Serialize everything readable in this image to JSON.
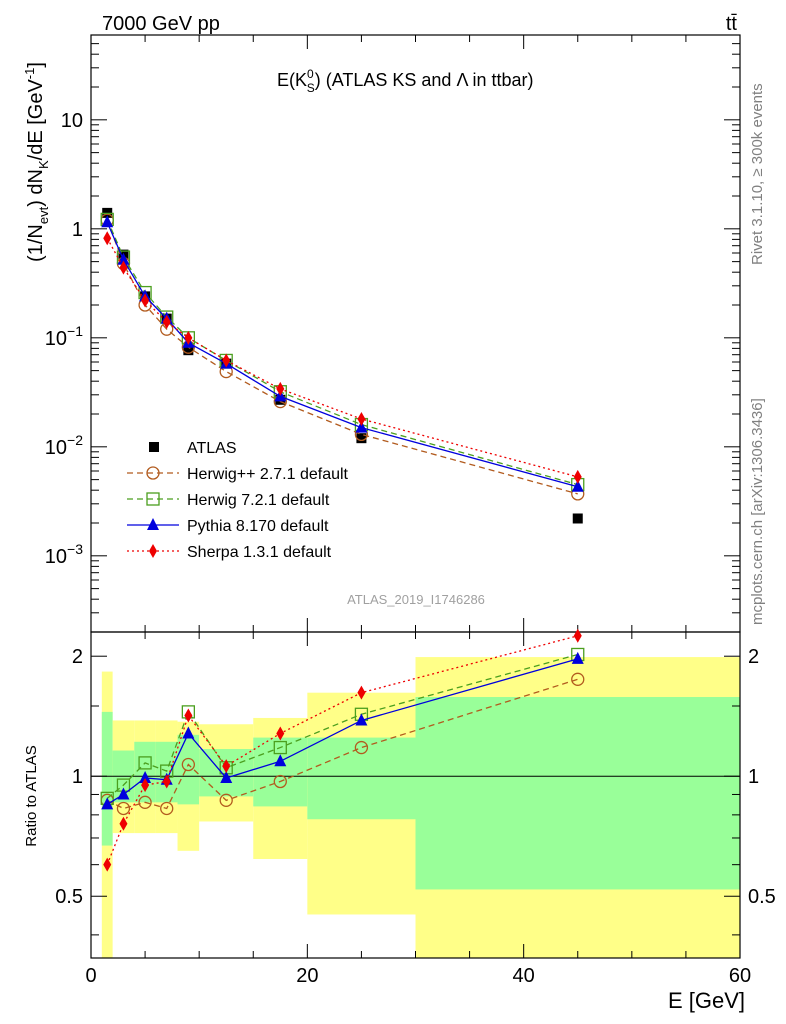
{
  "header": {
    "left": "7000 GeV pp",
    "right": "tt̄"
  },
  "side_text": {
    "rivet": "Rivet 3.1.10, ≥ 300k events",
    "mcplots": "mcplots.cern.ch [arXiv:1306.3436]"
  },
  "watermark": "ATLAS_2019_I1746286",
  "chart_data": {
    "type": "line",
    "title": "E(K⁰S) (ATLAS KS and Λ in ttbar)",
    "title_main": "E(K",
    "title_sup": "0",
    "title_sub": "S",
    "title_rest": ") (ATLAS KS and Λ in ttbar)",
    "xlabel": "E [GeV]",
    "ylabel": "(1/Nevt) dNK/dE [GeV⁻¹]",
    "ylabel_parts": {
      "a": "(1/N",
      "a_sub": "evt",
      "b": ") dN",
      "b_sub": "K",
      "c": "/dE [GeV",
      "c_sup": "-1",
      "d": "]"
    },
    "ratio_ylabel": "Ratio to ATLAS",
    "xlim": [
      0,
      60
    ],
    "ylim": [
      0.0002,
      60
    ],
    "yscale": "log",
    "ratio_ylim": [
      0.35,
      2.3
    ],
    "x_ticks": [
      "0",
      "20",
      "40",
      "60"
    ],
    "x_tick_values": [
      0,
      20,
      40,
      60
    ],
    "y_ticks": [
      {
        "value": 0.001,
        "base": "10",
        "exp": "−3"
      },
      {
        "value": 0.01,
        "base": "10",
        "exp": "−2"
      },
      {
        "value": 0.1,
        "base": "10",
        "exp": "−1"
      },
      {
        "value": 1,
        "base": "1",
        "exp": ""
      },
      {
        "value": 10,
        "base": "10",
        "exp": ""
      }
    ],
    "ratio_ticks": [
      "0.5",
      "1",
      "2"
    ],
    "ratio_tick_values": [
      0.5,
      1,
      2
    ],
    "x": [
      1.5,
      3,
      5,
      7,
      9,
      12.5,
      17.5,
      25,
      45
    ],
    "bin_edges": [
      1,
      2,
      4,
      6,
      8,
      10,
      15,
      20,
      30,
      60
    ],
    "data": {
      "name": "ATLAS",
      "values": [
        1.4,
        0.58,
        0.24,
        0.15,
        0.077,
        0.058,
        0.027,
        0.012,
        0.0022
      ],
      "color": "#000000"
    },
    "series": [
      {
        "name": "Herwig++ 2.7.1 default",
        "color": "#b25b1e",
        "marker": "circle",
        "dash": "6,4",
        "values": [
          1.2,
          0.48,
          0.2,
          0.12,
          0.082,
          0.049,
          0.026,
          0.013,
          0.0037
        ],
        "ratio": [
          0.87,
          0.83,
          0.86,
          0.83,
          1.07,
          0.87,
          0.97,
          1.18,
          1.75
        ]
      },
      {
        "name": "Herwig 7.2.1 default",
        "color": "#4b9f1e",
        "marker": "square",
        "dash": "6,4",
        "values": [
          1.22,
          0.55,
          0.26,
          0.155,
          0.1,
          0.062,
          0.032,
          0.016,
          0.0045
        ],
        "ratio": [
          0.88,
          0.95,
          1.08,
          1.03,
          1.45,
          1.05,
          1.18,
          1.43,
          2.02
        ]
      },
      {
        "name": "Pythia 8.170 default",
        "color": "#0000dd",
        "marker": "triangle",
        "dash": "",
        "values": [
          1.15,
          0.52,
          0.24,
          0.15,
          0.09,
          0.058,
          0.029,
          0.015,
          0.0043
        ],
        "ratio": [
          0.85,
          0.9,
          0.99,
          0.98,
          1.28,
          0.99,
          1.09,
          1.38,
          1.97
        ]
      },
      {
        "name": "Sherpa 1.3.1 default",
        "color": "#ee0000",
        "marker": "diamond",
        "dash": "2,3",
        "values": [
          0.82,
          0.44,
          0.22,
          0.14,
          0.1,
          0.062,
          0.034,
          0.018,
          0.0053
        ],
        "ratio": [
          0.6,
          0.76,
          0.95,
          0.97,
          1.42,
          1.06,
          1.28,
          1.62,
          2.25
        ]
      }
    ],
    "uncertainty_bands": {
      "inner": [
        [
          0.67,
          1.45
        ],
        [
          0.86,
          1.16
        ],
        [
          0.86,
          1.22
        ],
        [
          0.86,
          1.22
        ],
        [
          0.85,
          1.27
        ],
        [
          0.89,
          1.17
        ],
        [
          0.84,
          1.25
        ],
        [
          0.78,
          1.25
        ],
        [
          0.52,
          1.58
        ]
      ],
      "outer": [
        [
          0.35,
          1.83
        ],
        [
          0.72,
          1.38
        ],
        [
          0.72,
          1.38
        ],
        [
          0.72,
          1.38
        ],
        [
          0.65,
          1.37
        ],
        [
          0.77,
          1.35
        ],
        [
          0.62,
          1.4
        ],
        [
          0.45,
          1.62
        ],
        [
          0.35,
          1.99
        ]
      ],
      "inner_color": "#99ff99",
      "outer_color": "#ffff88"
    },
    "legend_position": "lower-left"
  }
}
